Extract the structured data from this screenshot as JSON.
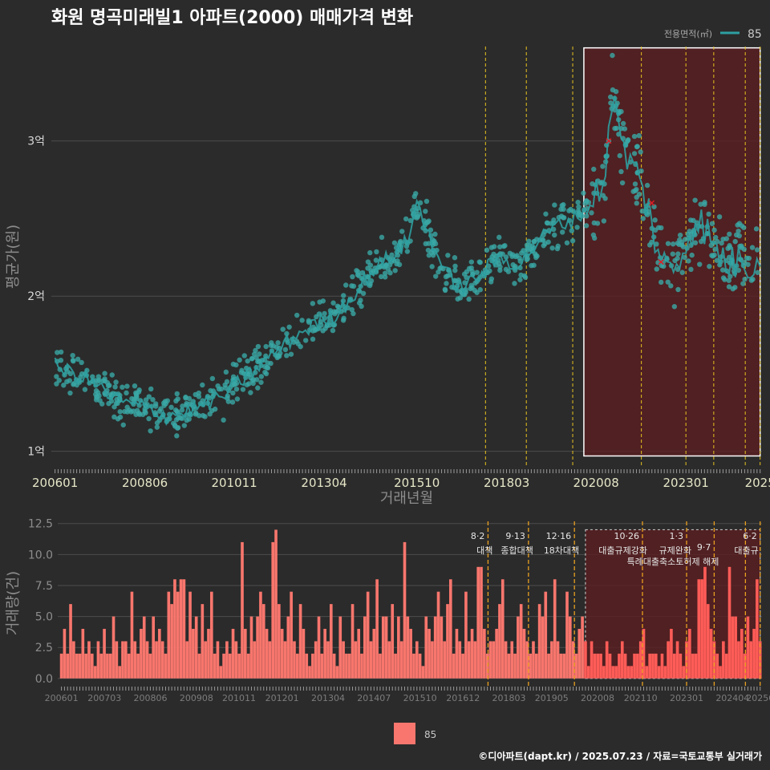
{
  "title": "화원 명곡미래빌1 아파트(2000) 매매가격 변화",
  "footer": "©디아파트(dapt.kr) / 2025.07.23 / 자료=국토교통부 실거래가",
  "colors": {
    "background": "#2b2b2b",
    "price_line": "#2e9fa0",
    "price_point": "#3aa7a5",
    "volume_bar": "#f8766d",
    "policy_line": "#e6c21f",
    "recent_box_fill": "#5a1e20",
    "recent_box_stroke": "#ffffff",
    "cancel_mark": "#e11d27"
  },
  "chart_data": [
    {
      "type": "line",
      "xlabel": "거래년월",
      "ylabel": "평균가(원)",
      "x_range": [
        2005.9,
        2025.05
      ],
      "ylim": [
        9000,
        36500
      ],
      "y_ticks": [
        {
          "value": 10000,
          "label": "1억"
        },
        {
          "value": 20000,
          "label": "2억"
        },
        {
          "value": 30000,
          "label": "3억"
        }
      ],
      "x_ticks": [
        {
          "value": 2006.0,
          "label": "200601"
        },
        {
          "value": 2008.42,
          "label": "200806"
        },
        {
          "value": 2010.83,
          "label": "201011"
        },
        {
          "value": 2013.25,
          "label": "201304"
        },
        {
          "value": 2015.75,
          "label": "201510"
        },
        {
          "value": 2018.17,
          "label": "201803"
        },
        {
          "value": 2020.58,
          "label": "202008"
        },
        {
          "value": 2023.0,
          "label": "202301"
        },
        {
          "value": 2025.0,
          "label": "2025"
        }
      ],
      "legend": {
        "title": "전용면적(㎡)",
        "position": "top-right",
        "entries": [
          "85"
        ]
      },
      "series": [
        {
          "name": "85",
          "x": [
            2006.0,
            2006.5,
            2007.0,
            2007.5,
            2008.0,
            2008.5,
            2009.0,
            2009.5,
            2010.0,
            2010.5,
            2011.0,
            2011.5,
            2012.0,
            2012.5,
            2013.0,
            2013.5,
            2014.0,
            2014.5,
            2015.0,
            2015.5,
            2015.75,
            2016.0,
            2016.5,
            2017.0,
            2017.5,
            2018.0,
            2018.5,
            2019.0,
            2019.5,
            2020.0,
            2020.5,
            2020.83,
            2021.0,
            2021.25,
            2021.5,
            2021.75,
            2022.0,
            2022.25,
            2022.5,
            2022.75,
            2023.0,
            2023.25,
            2023.5,
            2023.75,
            2024.0,
            2024.25,
            2024.5,
            2024.75,
            2025.0
          ],
          "values": [
            15500,
            15000,
            14500,
            13500,
            13000,
            12800,
            12300,
            12500,
            13000,
            13500,
            14500,
            15500,
            16500,
            17500,
            18200,
            18700,
            20000,
            21500,
            22500,
            23500,
            26000,
            24500,
            21500,
            20500,
            21500,
            22500,
            22000,
            23500,
            24500,
            25000,
            26000,
            28000,
            33000,
            30000,
            28500,
            27500,
            25500,
            23000,
            21500,
            22000,
            23500,
            25000,
            24500,
            23000,
            22500,
            22000,
            22500,
            22000,
            23000
          ]
        }
      ],
      "cancelled_deals": [
        {
          "x": 2020.92,
          "y": 30000
        },
        {
          "x": 2022.08,
          "y": 26000
        },
        {
          "x": 2022.33,
          "y": 22200
        }
      ],
      "highlight_range": {
        "x": [
          2020.25,
          2025.0
        ],
        "y": [
          9700,
          36000
        ]
      },
      "policy_dates": [
        2017.6,
        2018.7,
        2019.95,
        2021.8,
        2023.0,
        2023.75,
        2024.6,
        2025.0
      ]
    },
    {
      "type": "bar",
      "xlabel": "",
      "ylabel": "거래량(건)",
      "x_range": [
        2005.9,
        2025.05
      ],
      "ylim": [
        -0.4,
        13
      ],
      "y_ticks": [
        {
          "value": 0,
          "label": "0.0"
        },
        {
          "value": 2.5,
          "label": "2.5"
        },
        {
          "value": 5,
          "label": "5.0"
        },
        {
          "value": 7.5,
          "label": "7.5"
        },
        {
          "value": 10,
          "label": "10.0"
        },
        {
          "value": 12.5,
          "label": "12.5"
        }
      ],
      "x_ticks": [
        {
          "value": 2006.0,
          "label": "200601"
        },
        {
          "value": 2007.17,
          "label": "200703"
        },
        {
          "value": 2008.42,
          "label": "200806"
        },
        {
          "value": 2009.67,
          "label": "200908"
        },
        {
          "value": 2010.83,
          "label": "201011"
        },
        {
          "value": 2012.0,
          "label": "201201"
        },
        {
          "value": 2013.25,
          "label": "201304"
        },
        {
          "value": 2014.5,
          "label": "201407"
        },
        {
          "value": 2015.75,
          "label": "201510"
        },
        {
          "value": 2016.92,
          "label": "201612"
        },
        {
          "value": 2018.17,
          "label": "201803"
        },
        {
          "value": 2019.33,
          "label": "201905"
        },
        {
          "value": 2020.58,
          "label": "202008"
        },
        {
          "value": 2021.75,
          "label": "202110"
        },
        {
          "value": 2023.0,
          "label": "202301"
        },
        {
          "value": 2024.25,
          "label": "202404"
        },
        {
          "value": 2025.0,
          "label": "20250"
        }
      ],
      "legend": {
        "position": "bottom",
        "entries": [
          "85"
        ]
      },
      "series": [
        {
          "name": "85",
          "values": [
            2,
            4,
            2,
            6,
            3,
            2,
            2,
            4,
            2,
            3,
            2,
            1,
            3,
            2,
            4,
            2,
            2,
            5,
            3,
            1,
            3,
            3,
            2,
            7,
            3,
            2,
            4,
            5,
            3,
            2,
            5,
            3,
            4,
            3,
            2,
            7,
            6,
            8,
            7,
            8,
            8,
            3,
            7,
            4,
            5,
            2,
            6,
            3,
            4,
            7,
            2,
            3,
            1,
            2,
            3,
            2,
            4,
            3,
            2,
            11,
            4,
            2,
            5,
            3,
            5,
            7,
            6,
            4,
            3,
            11,
            12,
            6,
            4,
            3,
            5,
            7,
            3,
            2,
            6,
            4,
            2,
            1,
            2,
            3,
            5,
            2,
            4,
            3,
            6,
            2,
            1,
            5,
            3,
            2,
            2,
            6,
            3,
            4,
            2,
            5,
            7,
            3,
            4,
            8,
            2,
            5,
            5,
            3,
            6,
            2,
            5,
            3,
            11,
            5,
            4,
            2,
            3,
            2,
            1,
            5,
            4,
            3,
            5,
            7,
            5,
            3,
            6,
            8,
            2,
            4,
            3,
            2,
            7,
            3,
            4,
            3,
            9,
            9,
            4,
            2,
            3,
            3,
            4,
            6,
            8,
            3,
            2,
            3,
            2,
            5,
            6,
            4,
            3,
            2,
            3,
            2,
            6,
            5,
            7,
            2,
            3,
            8,
            3,
            2,
            2,
            7,
            5,
            3,
            2,
            4,
            5,
            3,
            1,
            3,
            2,
            2,
            2,
            1,
            3,
            2,
            1,
            1,
            2,
            3,
            2,
            1,
            1,
            2,
            2,
            3,
            4,
            1,
            2,
            2,
            2,
            1,
            2,
            1,
            3,
            4,
            2,
            3,
            2,
            1,
            3,
            4,
            2,
            2,
            8,
            8,
            9,
            6,
            4,
            3,
            2,
            1,
            3,
            2,
            9,
            5,
            5,
            3,
            4,
            2,
            5,
            3,
            4,
            8,
            3,
            2,
            4,
            1,
            4,
            2,
            8,
            3,
            5,
            7,
            3,
            2,
            4,
            1,
            3,
            2,
            1,
            7,
            2,
            5,
            4,
            3,
            2,
            3,
            2,
            1,
            3,
            4,
            2,
            1,
            1,
            2,
            3,
            1,
            9,
            4,
            2,
            3,
            1,
            2,
            3,
            2,
            5,
            1,
            2,
            3,
            1,
            2,
            1,
            3,
            2,
            1,
            4,
            5,
            2,
            1,
            3,
            2,
            4,
            1,
            3,
            1,
            2,
            3,
            2,
            4,
            1,
            2,
            3,
            2,
            6,
            1,
            3,
            4,
            2,
            1,
            5,
            3,
            2,
            4,
            1,
            2,
            6,
            4,
            3,
            2,
            1,
            5,
            3,
            2,
            1,
            3,
            3,
            2,
            1,
            3,
            2,
            3,
            1
          ]
        }
      ],
      "highlight_range": {
        "x": [
          2020.25,
          2025.0
        ],
        "y": [
          0,
          12
        ]
      },
      "policy_dates": [
        2017.6,
        2018.7,
        2019.95,
        2021.8,
        2023.0,
        2023.75,
        2024.6,
        2025.0
      ],
      "annotations": [
        {
          "x": 2017.6,
          "date": "8·2",
          "text": "대책"
        },
        {
          "x": 2018.7,
          "date": "9·13",
          "text": "종합대책"
        },
        {
          "x": 2019.95,
          "date": "12·16",
          "text": "18차대책"
        },
        {
          "x": 2021.8,
          "date": "10·26",
          "text": "대출규제강화"
        },
        {
          "x": 2023.0,
          "date": "1·3",
          "text": "규제완화"
        },
        {
          "x": 2023.75,
          "date": "9·7",
          "text": "특례대출축소토허제 해제"
        },
        {
          "x": 2025.0,
          "date": "6·2",
          "text": "대출규"
        }
      ]
    }
  ]
}
